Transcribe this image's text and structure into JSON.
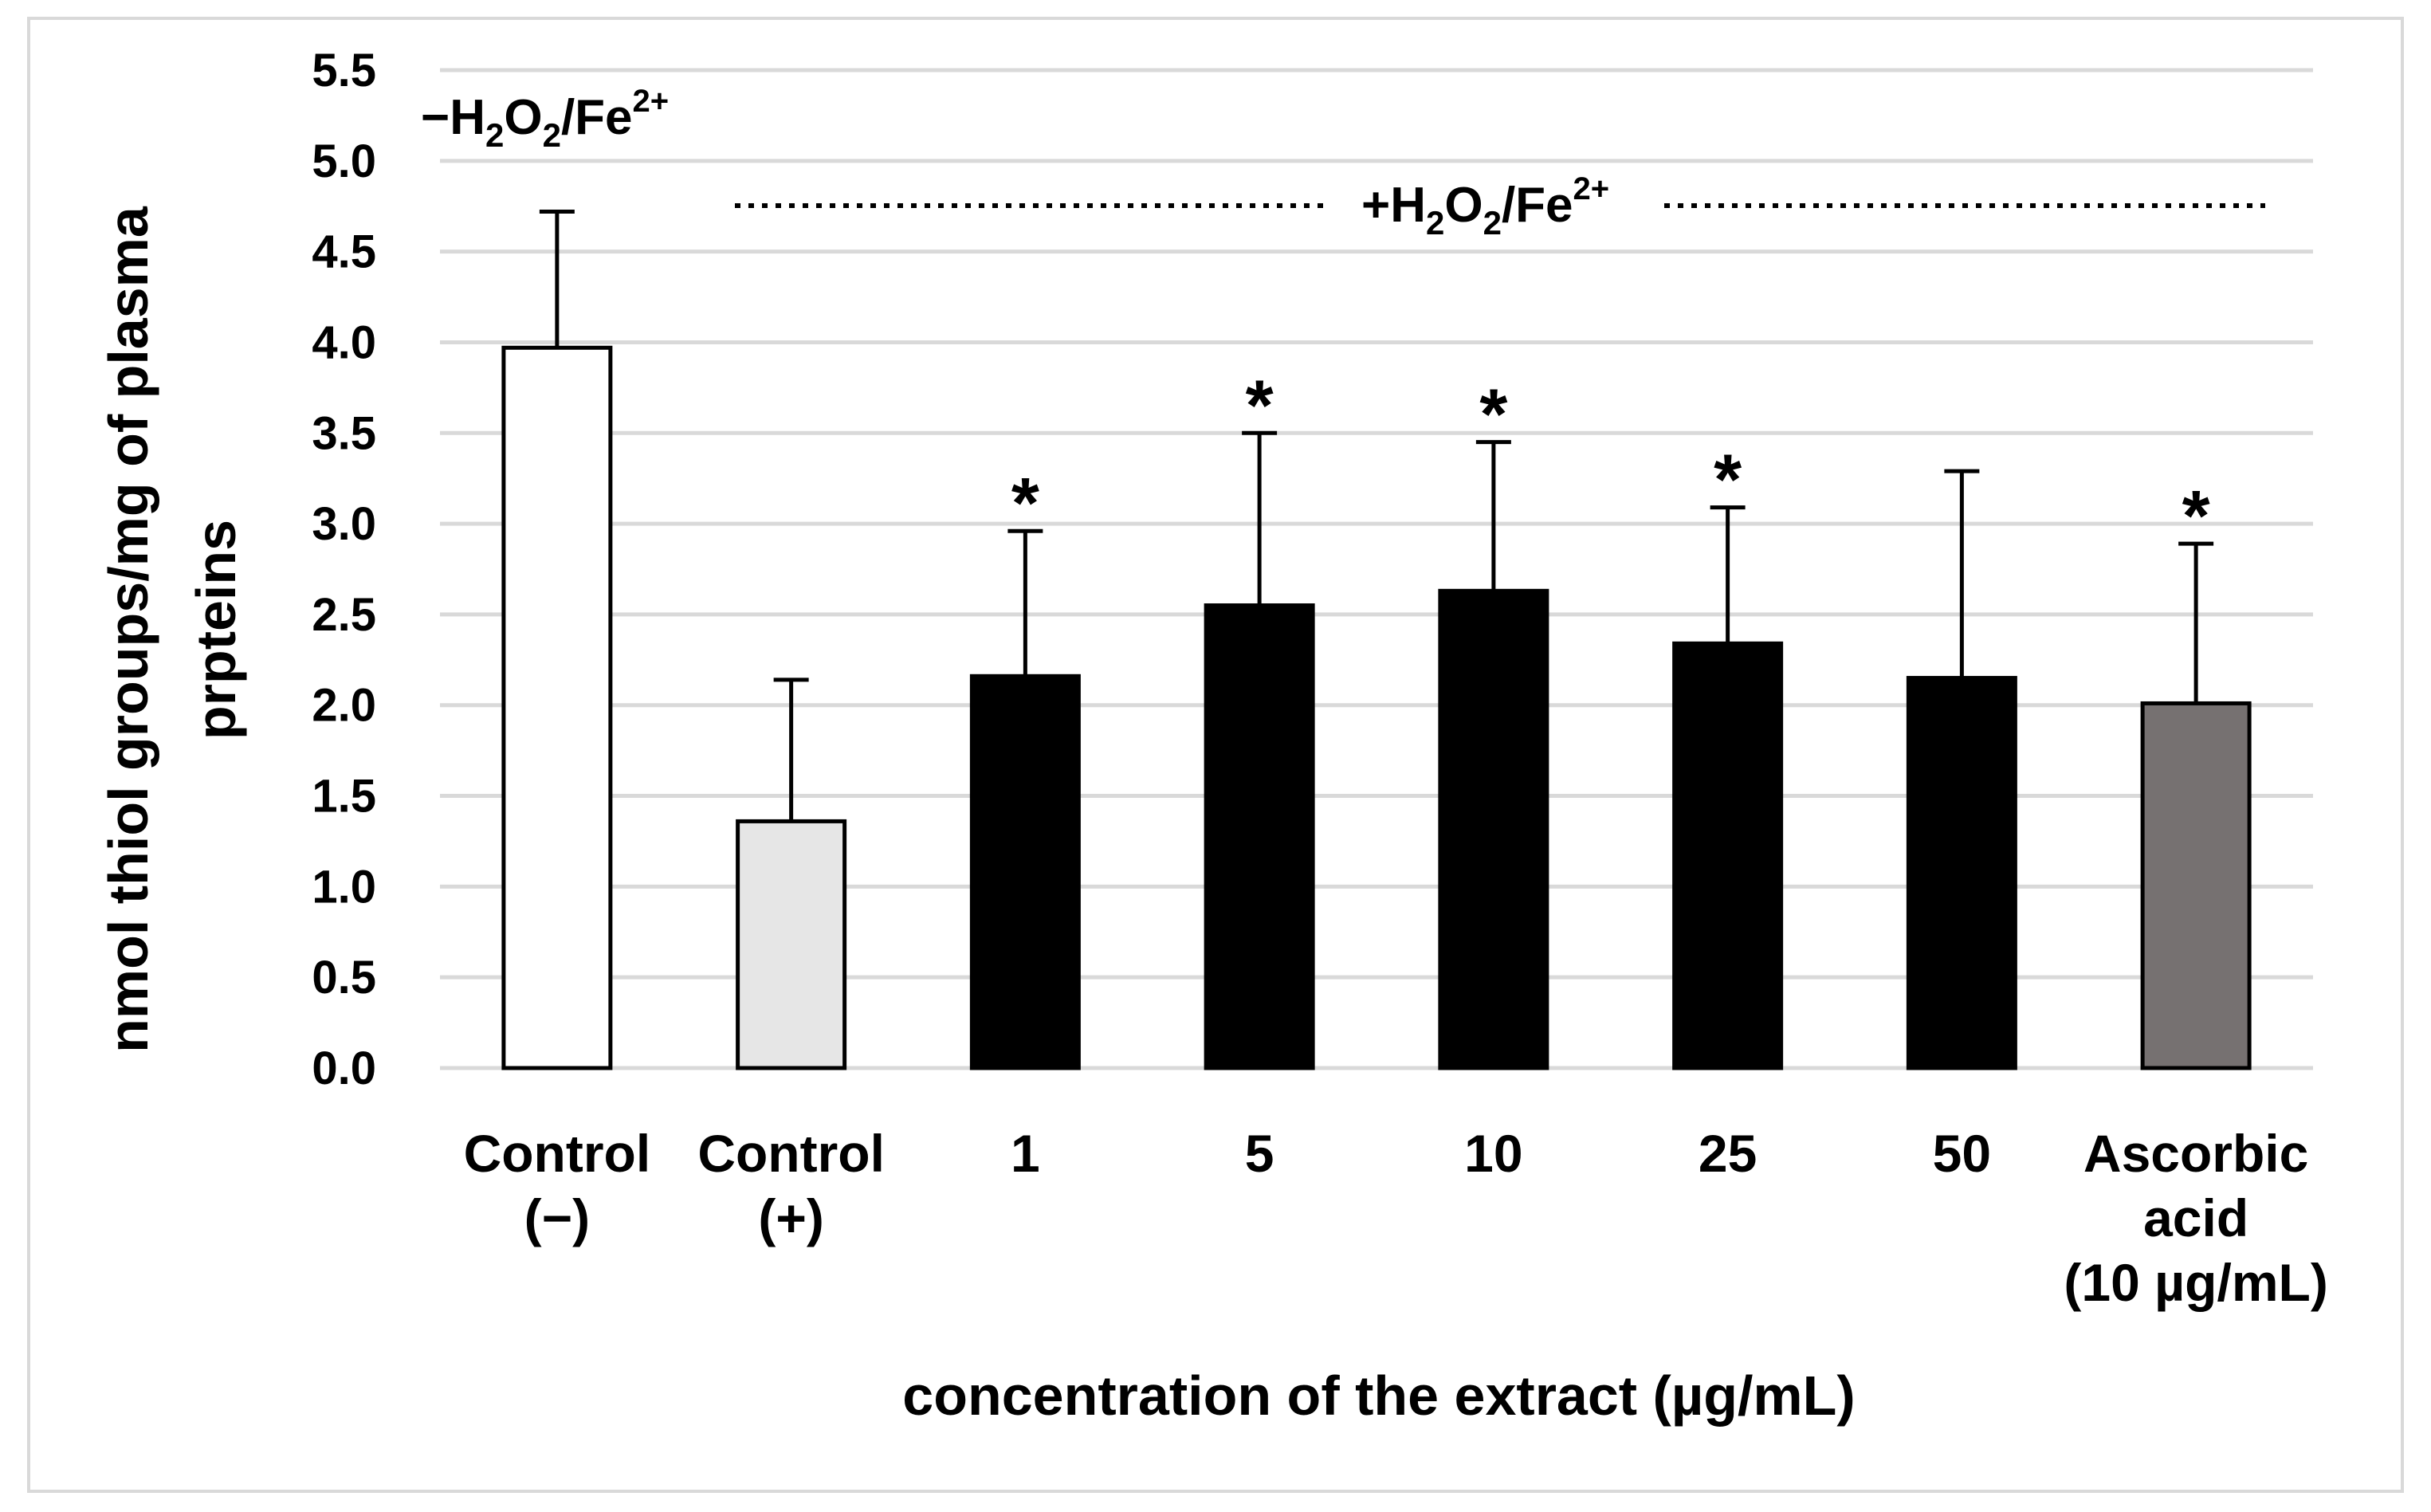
{
  "chart_data": {
    "type": "bar",
    "ylabel_line1": "nmol thiol groups/mg of plasma",
    "ylabel_line2": "prpteins",
    "xlabel": "concentration of the extract (µg/mL)",
    "ylim": [
      0,
      5.5
    ],
    "yticks": [
      "0.0",
      "0.5",
      "1.0",
      "1.5",
      "2.0",
      "2.5",
      "3.0",
      "3.5",
      "4.0",
      "4.5",
      "5.0",
      "5.5"
    ],
    "grid": true,
    "categories": [
      [
        "Control",
        "(−)"
      ],
      [
        "Control",
        "(+)"
      ],
      [
        "1"
      ],
      [
        "5"
      ],
      [
        "10"
      ],
      [
        "25"
      ],
      [
        "50"
      ],
      [
        "Ascorbic",
        "acid",
        "(10 µg/mL)"
      ]
    ],
    "values": [
      3.97,
      1.36,
      2.16,
      2.55,
      2.63,
      2.34,
      2.15,
      2.01
    ],
    "errors": [
      0.75,
      0.78,
      0.8,
      0.95,
      0.82,
      0.75,
      1.14,
      0.88
    ],
    "significant": [
      false,
      false,
      true,
      true,
      true,
      true,
      false,
      true
    ],
    "significance_marker": "*",
    "bar_colors": [
      "#ffffff",
      "#e6e6e6",
      "#000000",
      "#000000",
      "#000000",
      "#000000",
      "#000000",
      "#767171"
    ],
    "annotations": {
      "minus": {
        "prefix": "−H",
        "sub1": "2",
        "mid": "O",
        "sub2": "2",
        "suffix": "/Fe",
        "sup": "2+"
      },
      "plus": {
        "prefix": "+H",
        "sub1": "2",
        "mid": "O",
        "sub2": "2",
        "suffix": "/Fe",
        "sup": "2+"
      }
    }
  }
}
